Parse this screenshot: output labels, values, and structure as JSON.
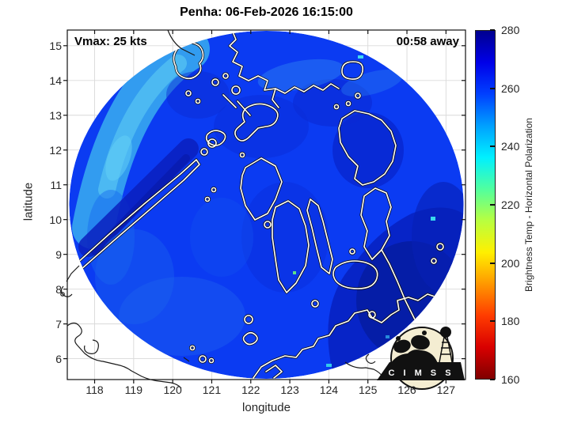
{
  "title": "Penha: 06-Feb-2026 16:15:00",
  "annotations": {
    "vmax_label": "Vmax: 25 kts",
    "eta_label": "00:58 away"
  },
  "storm": {
    "name": "Penha",
    "datetime": "06-Feb-2026 16:15:00",
    "vmax_kts": 25,
    "time_away": "00:58"
  },
  "axes": {
    "xlabel": "longitude",
    "ylabel": "latitude",
    "x_ticks": [
      118,
      119,
      120,
      121,
      122,
      123,
      124,
      125,
      126,
      127
    ],
    "y_ticks": [
      6,
      7,
      8,
      9,
      10,
      11,
      12,
      13,
      14,
      15
    ]
  },
  "colorbar": {
    "label": "Brightness Temp - Horizontal Polarization",
    "ticks": [
      160,
      180,
      200,
      220,
      240,
      260,
      280
    ],
    "min": 160,
    "max": 280,
    "colormap_stops_top_to_bottom": [
      "#00008F",
      "#0000E8",
      "#0040FF",
      "#00A0FF",
      "#00F0FF",
      "#50FF9F",
      "#B8FF40",
      "#FFF000",
      "#FF9800",
      "#FF3C00",
      "#D90000",
      "#800000"
    ]
  },
  "chart_data": {
    "type": "heatmap",
    "title": "Penha: 06-Feb-2026 16:15:00",
    "xlabel": "longitude",
    "ylabel": "latitude",
    "xlim": [
      117.3,
      127.5
    ],
    "ylim": [
      5.4,
      15.45
    ],
    "grid": true,
    "legend_position": "colorbar-right",
    "field": "Brightness Temp - Horizontal Polarization (K)",
    "value_range_shown": [
      160,
      280
    ],
    "swath": {
      "shape": "circular",
      "center_lon": 122.4,
      "center_lat": 10.4,
      "radius_deg": 5.05
    },
    "observed_values_K": {
      "ocean_background": 260,
      "dark_blue_patches_over_islands_and_east": 272,
      "light_blue_band_northwest_edge": 244,
      "bright_cyan_specks": 235
    },
    "region": "Philippine archipelago (Visayas), lon 117.3-127.5 E, lat 5.4-15.45 N",
    "overlays": [
      "white coastlines inside swath",
      "thin black coastlines outside swath",
      "CIMSS logo bottom-right"
    ]
  },
  "logo": {
    "text": "C I M S S"
  },
  "colors": {
    "background": "#ffffff",
    "grid": "#d9d9d9",
    "axis_box": "#111111",
    "tick_label": "#262626",
    "title_text": "#000000",
    "map_base": "#0b3bf2",
    "coastline_inside": "#ffffff",
    "coastline_outside": "#1a1a1a",
    "logo_circle": "#f4edd2"
  }
}
